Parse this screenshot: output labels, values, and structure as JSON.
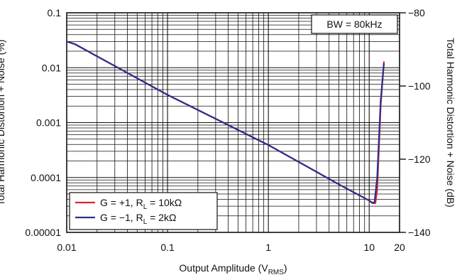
{
  "chart_data": {
    "type": "line",
    "xscale": "log",
    "yscale": "log",
    "xlim": [
      0.01,
      20
    ],
    "ylim": [
      1e-05,
      0.1
    ],
    "y2lim": [
      -140,
      -80
    ],
    "grid": true,
    "legend_placement": "bottom-left",
    "xticks": [
      "0.01",
      "0.1",
      "1",
      "10",
      "20"
    ],
    "yticks": [
      "0.00001",
      "0.0001",
      "0.001",
      "0.01",
      "0.1"
    ],
    "y2ticks": [
      "-140",
      "-120",
      "-100",
      "-80"
    ],
    "xlabel": {
      "main": "Output Amplitude (V",
      "sub": "RMS",
      "end": ")"
    },
    "ylabel": "Total Harmonic Distortion + Noise (%)",
    "y2label": "Total Harmonic Distortion + Noise (dB)",
    "annotation": "BW = 80kHz",
    "series": [
      {
        "name": {
          "pre": "G = +1, R",
          "sub": "L",
          "post": " = 10kΩ"
        },
        "color": "#e32228",
        "x": [
          0.01,
          0.012,
          0.1,
          1,
          5,
          10,
          11,
          11.5,
          12,
          13,
          14
        ],
        "y": [
          0.03,
          0.027,
          0.0032,
          0.00039,
          7.5e-05,
          3.8e-05,
          3.4e-05,
          3.4e-05,
          6e-05,
          0.002,
          0.013
        ]
      },
      {
        "name": {
          "pre": "G = −1, R",
          "sub": "L",
          "post": " = 2kΩ"
        },
        "color": "#2b2f8f",
        "x": [
          0.01,
          0.012,
          0.1,
          1,
          5,
          10,
          10.8,
          11.3,
          12,
          13,
          14
        ],
        "y": [
          0.03,
          0.027,
          0.0032,
          0.00039,
          7.5e-05,
          3.8e-05,
          3.4e-05,
          3.6e-05,
          0.0001,
          0.0025,
          0.012
        ]
      }
    ]
  }
}
